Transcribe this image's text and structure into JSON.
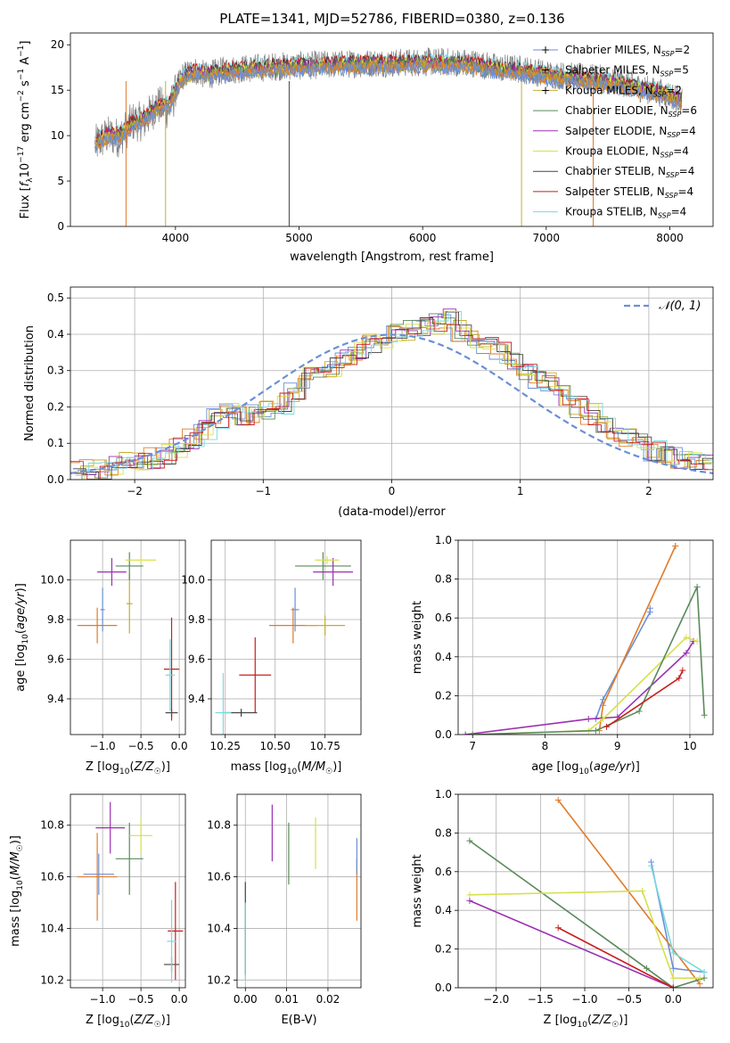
{
  "figure": {
    "title": "PLATE=1341, MJD=52786, FIBERID=0380, z=0.136"
  },
  "model_colors": [
    "#6a8fd6",
    "#e07b2a",
    "#c4ae2e",
    "#5a8a5a",
    "#9b30b0",
    "#d6e04a",
    "#444444",
    "#c81e1e",
    "#78d8e0"
  ],
  "chart_data": [
    {
      "id": "spectrum",
      "type": "line",
      "xlabel": "wavelength [Angstrom, rest frame]",
      "ylabel": "Flux [f_λ 10^-17 erg cm^-2 s^-1 A^-1]",
      "xlim": [
        3150,
        8350
      ],
      "ylim": [
        0,
        21.3
      ],
      "xticks": [
        4000,
        5000,
        6000,
        7000,
        8000
      ],
      "yticks": [
        0,
        5,
        10,
        15,
        20
      ],
      "grid": false,
      "legend_position": "upper right",
      "legend": [
        "Chabrier MILES, N_SSP=2",
        "Salpeter MILES, N_SSP=5",
        "Kroupa MILES, N_SSP=2",
        "Chabrier ELODIE, N_SSP=6",
        "Salpeter ELODIE, N_SSP=4",
        "Kroupa ELODIE, N_SSP=4",
        "Chabrier STELIB, N_SSP=4",
        "Salpeter STELIB, N_SSP=4",
        "Kroupa STELIB, N_SSP=4"
      ],
      "data_spectrum": {
        "x": [
          3350,
          3450,
          3550,
          3650,
          3750,
          3850,
          3950,
          4050,
          4150,
          4250,
          4400,
          4600,
          4800,
          5000,
          5200,
          5400,
          5600,
          5800,
          6000,
          6200,
          6400,
          6600,
          6800,
          7000,
          7200,
          7400,
          7600,
          7800,
          8000,
          8100
        ],
        "y": [
          9.0,
          10.0,
          9.8,
          11.5,
          11.6,
          13.4,
          12.8,
          16.5,
          17.2,
          16.6,
          17.2,
          17.4,
          17.6,
          17.7,
          17.8,
          17.9,
          18.0,
          18.0,
          18.1,
          18.1,
          18.0,
          17.5,
          17.3,
          16.8,
          16.5,
          16.3,
          15.9,
          15.1,
          14.5,
          13.9
        ]
      },
      "model_spectrum": {
        "x": [
          3350,
          3450,
          3550,
          3650,
          3750,
          3850,
          3950,
          4050,
          4150,
          4250,
          4400,
          4600,
          4800,
          5000,
          5200,
          5400,
          5600,
          5800,
          6000,
          6200,
          6400,
          6600,
          6800,
          7000,
          7200,
          7400,
          7600,
          7800,
          8000,
          8100
        ],
        "y": [
          9.1,
          10.1,
          10.0,
          11.2,
          11.8,
          13.0,
          13.4,
          16.2,
          17.0,
          16.8,
          17.0,
          17.3,
          17.5,
          17.6,
          17.7,
          17.8,
          17.9,
          17.9,
          18.0,
          17.9,
          17.8,
          17.3,
          17.1,
          16.6,
          16.3,
          16.0,
          15.6,
          15.0,
          14.4,
          13.8
        ]
      }
    },
    {
      "id": "residuals",
      "type": "line",
      "xlabel": "(data-model)/error",
      "ylabel": "Normed distribution",
      "xlim": [
        -2.5,
        2.5
      ],
      "ylim": [
        0,
        0.53
      ],
      "xticks": [
        -2,
        -1,
        0,
        1,
        2
      ],
      "yticks": [
        0.0,
        0.1,
        0.2,
        0.3,
        0.4,
        0.5
      ],
      "grid": true,
      "legend_position": "upper right",
      "legend": [
        "N(0,1)"
      ],
      "bin_edges_start": -2.5,
      "bin_width": 0.1,
      "histogram": [
        0.02,
        0.025,
        0.03,
        0.04,
        0.05,
        0.05,
        0.06,
        0.07,
        0.09,
        0.11,
        0.14,
        0.17,
        0.19,
        0.17,
        0.18,
        0.19,
        0.21,
        0.24,
        0.28,
        0.29,
        0.31,
        0.33,
        0.35,
        0.37,
        0.39,
        0.4,
        0.41,
        0.42,
        0.43,
        0.44,
        0.41,
        0.38,
        0.37,
        0.35,
        0.33,
        0.3,
        0.28,
        0.27,
        0.23,
        0.2,
        0.18,
        0.15,
        0.13,
        0.12,
        0.1,
        0.08,
        0.07,
        0.06,
        0.05,
        0.04
      ]
    },
    {
      "id": "age_vs_Z",
      "type": "scatter",
      "xlabel": "Z [log10(Z/Z☉)]",
      "ylabel": "age [log10(age/yr)]",
      "xlim": [
        -1.42,
        0.08
      ],
      "ylim": [
        9.22,
        10.2
      ],
      "xticks": [
        -1.0,
        -0.5,
        0.0
      ],
      "xtick_labels": [
        "−1.0",
        "−0.5",
        "0.0"
      ],
      "yticks": [
        9.4,
        9.6,
        9.8,
        10.0
      ],
      "grid": true,
      "points": [
        {
          "x": -1.0,
          "y": 9.85,
          "xerr": 0.03,
          "yerr": 0.11,
          "c": 0
        },
        {
          "x": -1.07,
          "y": 9.77,
          "xerr": 0.26,
          "yerr": 0.09,
          "c": 1
        },
        {
          "x": -0.65,
          "y": 9.88,
          "xerr": 0.04,
          "yerr": 0.15,
          "c": 2
        },
        {
          "x": -0.65,
          "y": 10.07,
          "xerr": 0.18,
          "yerr": 0.07,
          "c": 3
        },
        {
          "x": -0.88,
          "y": 10.04,
          "xerr": 0.19,
          "yerr": 0.07,
          "c": 4
        },
        {
          "x": -0.5,
          "y": 10.1,
          "xerr": 0.2,
          "yerr": 0.02,
          "c": 5
        },
        {
          "x": -0.1,
          "y": 9.33,
          "xerr": 0.08,
          "yerr": 0.02,
          "c": 6
        },
        {
          "x": -0.1,
          "y": 9.55,
          "xerr": 0.1,
          "yerr": 0.26,
          "c": 7
        },
        {
          "x": -0.12,
          "y": 9.52,
          "xerr": 0.06,
          "yerr": 0.18,
          "c": 8
        }
      ]
    },
    {
      "id": "age_vs_mass",
      "type": "scatter",
      "xlabel": "mass [log10(M/M☉)]",
      "ylabel": "",
      "xlim": [
        10.18,
        10.93
      ],
      "ylim": [
        9.22,
        10.2
      ],
      "xticks": [
        10.25,
        10.5,
        10.75
      ],
      "xtick_labels": [
        "10.25",
        "10.50",
        "10.75"
      ],
      "yticks": [
        9.4,
        9.6,
        9.8,
        10.0
      ],
      "grid": true,
      "points": [
        {
          "x": 10.6,
          "y": 9.85,
          "xerr": 0.02,
          "yerr": 0.11,
          "c": 0
        },
        {
          "x": 10.59,
          "y": 9.77,
          "xerr": 0.12,
          "yerr": 0.09,
          "c": 1
        },
        {
          "x": 10.75,
          "y": 9.77,
          "xerr": 0.1,
          "yerr": 0.05,
          "c": 2
        },
        {
          "x": 10.74,
          "y": 10.07,
          "xerr": 0.14,
          "yerr": 0.07,
          "c": 3
        },
        {
          "x": 10.79,
          "y": 10.04,
          "xerr": 0.1,
          "yerr": 0.07,
          "c": 4
        },
        {
          "x": 10.76,
          "y": 10.1,
          "xerr": 0.06,
          "yerr": 0.02,
          "c": 5
        },
        {
          "x": 10.33,
          "y": 9.33,
          "xerr": 0.08,
          "yerr": 0.02,
          "c": 6
        },
        {
          "x": 10.4,
          "y": 9.52,
          "xerr": 0.08,
          "yerr": 0.19,
          "c": 7
        },
        {
          "x": 10.24,
          "y": 9.33,
          "xerr": 0.04,
          "yerr": 0.2,
          "c": 8
        }
      ]
    },
    {
      "id": "weight_vs_age",
      "type": "line",
      "xlabel": "age (log10(age/yr))",
      "ylabel": "mass weight",
      "xlim": [
        6.8,
        10.32
      ],
      "ylim": [
        0,
        1
      ],
      "xticks": [
        7,
        8,
        9,
        10
      ],
      "yticks": [
        0.0,
        0.2,
        0.4,
        0.6,
        0.8,
        1.0
      ],
      "grid": true,
      "series": [
        {
          "c": 0,
          "x": [
            8.7,
            8.8,
            9.45,
            9.45
          ],
          "y": [
            0.08,
            0.18,
            0.63,
            0.65
          ]
        },
        {
          "c": 1,
          "x": [
            8.75,
            8.8,
            9.8,
            9.8
          ],
          "y": [
            0.02,
            0.15,
            0.97,
            0.97
          ]
        },
        {
          "c": 4,
          "x": [
            6.9,
            8.6,
            9.0,
            9.95,
            10.05
          ],
          "y": [
            0.0,
            0.08,
            0.09,
            0.42,
            0.48
          ]
        },
        {
          "c": 5,
          "x": [
            7.0,
            8.6,
            8.8,
            9.95,
            10.1
          ],
          "y": [
            0.0,
            0.02,
            0.08,
            0.5,
            0.48
          ]
        },
        {
          "c": 3,
          "x": [
            7.0,
            8.7,
            9.3,
            10.1,
            10.2
          ],
          "y": [
            0.0,
            0.02,
            0.12,
            0.76,
            0.1
          ]
        },
        {
          "c": 7,
          "x": [
            8.85,
            9.85,
            9.9
          ],
          "y": [
            0.04,
            0.29,
            0.33
          ]
        }
      ]
    },
    {
      "id": "mass_vs_Z",
      "type": "scatter",
      "xlabel": "Z [log10(Z/Z☉)]",
      "ylabel": "mass [log10(M/M☉)]",
      "xlim": [
        -1.42,
        0.08
      ],
      "ylim": [
        10.17,
        10.92
      ],
      "xticks": [
        -1.0,
        -0.5,
        0.0
      ],
      "xtick_labels": [
        "−1.0",
        "−0.5",
        "0.0"
      ],
      "yticks": [
        10.2,
        10.4,
        10.6,
        10.8
      ],
      "grid": true,
      "points": [
        {
          "x": -1.05,
          "y": 10.61,
          "xerr": 0.2,
          "yerr": 0.08,
          "c": 0
        },
        {
          "x": -1.07,
          "y": 10.6,
          "xerr": 0.26,
          "yerr": 0.17,
          "c": 1
        },
        {
          "x": -0.65,
          "y": 10.67,
          "xerr": 0.18,
          "yerr": 0.14,
          "c": 3
        },
        {
          "x": -0.9,
          "y": 10.79,
          "xerr": 0.19,
          "yerr": 0.1,
          "c": 4
        },
        {
          "x": -0.5,
          "y": 10.76,
          "xerr": 0.15,
          "yerr": 0.07,
          "c": 5
        },
        {
          "x": -0.1,
          "y": 10.26,
          "xerr": 0.1,
          "yerr": 0.03,
          "c": 6
        },
        {
          "x": -0.05,
          "y": 10.39,
          "xerr": 0.1,
          "yerr": 0.19,
          "c": 7
        },
        {
          "x": -0.1,
          "y": 10.35,
          "xerr": 0.06,
          "yerr": 0.16,
          "c": 8
        }
      ]
    },
    {
      "id": "mass_vs_EBV",
      "type": "scatter",
      "xlabel": "E(B-V)",
      "ylabel": "",
      "xlim": [
        -0.002,
        0.028
      ],
      "ylim": [
        10.17,
        10.92
      ],
      "xticks": [
        0.0,
        0.01,
        0.02
      ],
      "xtick_labels": [
        "0.00",
        "0.01",
        "0.02"
      ],
      "yticks": [
        10.2,
        10.4,
        10.6,
        10.8
      ],
      "grid": true,
      "points": [
        {
          "x": 0.0,
          "y": 10.4,
          "xerr": 0.0,
          "yerr": 0.18,
          "c": 6
        },
        {
          "x": 0.0,
          "y": 10.35,
          "xerr": 0.0,
          "yerr": 0.15,
          "c": 8
        },
        {
          "x": 0.0065,
          "y": 10.77,
          "xerr": 0.0,
          "yerr": 0.11,
          "c": 4
        },
        {
          "x": 0.0105,
          "y": 10.69,
          "xerr": 0.0,
          "yerr": 0.12,
          "c": 3
        },
        {
          "x": 0.017,
          "y": 10.73,
          "xerr": 0.0,
          "yerr": 0.1,
          "c": 5
        },
        {
          "x": 0.027,
          "y": 10.55,
          "xerr": 0.0,
          "yerr": 0.12,
          "c": 1
        },
        {
          "x": 0.027,
          "y": 10.68,
          "xerr": 0.0,
          "yerr": 0.07,
          "c": 0
        }
      ]
    },
    {
      "id": "weight_vs_Z",
      "type": "line",
      "xlabel": "Z [log10(Z/Z☉)]",
      "ylabel": "mass weight",
      "xlim": [
        -2.43,
        0.45
      ],
      "ylim": [
        0,
        1
      ],
      "xticks": [
        -2.0,
        -1.5,
        -1.0,
        -0.5,
        0.0
      ],
      "xtick_labels": [
        "−2.0",
        "−1.5",
        "−1.0",
        "−0.5",
        "0.0"
      ],
      "yticks": [
        0.0,
        0.2,
        0.4,
        0.6,
        0.8,
        1.0
      ],
      "grid": true,
      "series": [
        {
          "c": 0,
          "x": [
            -0.25,
            0.0,
            0.35
          ],
          "y": [
            0.65,
            0.1,
            0.08
          ]
        },
        {
          "c": 1,
          "x": [
            -1.3,
            0.3
          ],
          "y": [
            0.97,
            0.02
          ]
        },
        {
          "c": 3,
          "x": [
            -2.3,
            -0.3,
            0.0,
            0.35
          ],
          "y": [
            0.76,
            0.1,
            0.0,
            0.05
          ]
        },
        {
          "c": 4,
          "x": [
            -2.3,
            0.0
          ],
          "y": [
            0.45,
            0.0
          ]
        },
        {
          "c": 5,
          "x": [
            -2.3,
            -0.35,
            0.0,
            0.3
          ],
          "y": [
            0.48,
            0.5,
            0.05,
            0.05
          ]
        },
        {
          "c": 7,
          "x": [
            -1.3,
            0.0
          ],
          "y": [
            0.31,
            0.0
          ]
        },
        {
          "c": 8,
          "x": [
            -0.25,
            0.0,
            0.35
          ],
          "y": [
            0.63,
            0.18,
            0.08
          ]
        }
      ]
    }
  ]
}
